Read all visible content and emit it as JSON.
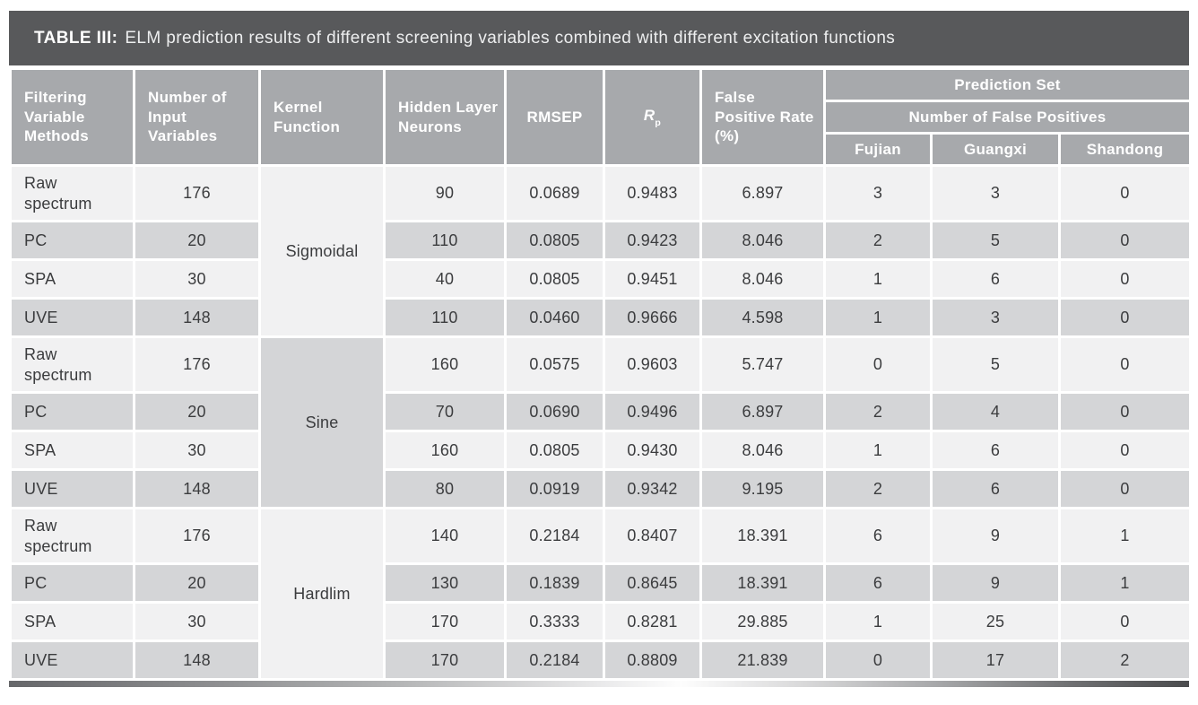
{
  "title": {
    "label": "TABLE III:",
    "text": "ELM prediction results of different screening variables combined with different excitation functions"
  },
  "header": {
    "col_filtering": "Filtering Variable Methods",
    "col_num_input": "Number of Input Variables",
    "col_kernel": "Kernel Function",
    "col_hidden": "Hidden Layer Neurons",
    "col_rmsep": "RMSEP",
    "col_rp_base": "R",
    "col_rp_sub": "p",
    "col_fpr": "False Positive Rate (%)",
    "group_prediction": "Prediction Set",
    "group_false_positives": "Number of False Positives",
    "region_fujian": "Fujian",
    "region_guangxi": "Guangxi",
    "region_shandong": "Shandong"
  },
  "rows": [
    {
      "method": "Raw spectrum",
      "inputs": "176",
      "kernel": "Sigmoidal",
      "neurons": "90",
      "rmsep": "0.0689",
      "rp": "0.9483",
      "fpr": "6.897",
      "fujian": "3",
      "guangxi": "3",
      "shandong": "0"
    },
    {
      "method": "PC",
      "inputs": "20",
      "neurons": "110",
      "rmsep": "0.0805",
      "rp": "0.9423",
      "fpr": "8.046",
      "fujian": "2",
      "guangxi": "5",
      "shandong": "0"
    },
    {
      "method": "SPA",
      "inputs": "30",
      "neurons": "40",
      "rmsep": "0.0805",
      "rp": "0.9451",
      "fpr": "8.046",
      "fujian": "1",
      "guangxi": "6",
      "shandong": "0"
    },
    {
      "method": "UVE",
      "inputs": "148",
      "neurons": "110",
      "rmsep": "0.0460",
      "rp": "0.9666",
      "fpr": "4.598",
      "fujian": "1",
      "guangxi": "3",
      "shandong": "0"
    },
    {
      "method": "Raw spectrum",
      "inputs": "176",
      "kernel": "Sine",
      "neurons": "160",
      "rmsep": "0.0575",
      "rp": "0.9603",
      "fpr": "5.747",
      "fujian": "0",
      "guangxi": "5",
      "shandong": "0"
    },
    {
      "method": "PC",
      "inputs": "20",
      "neurons": "70",
      "rmsep": "0.0690",
      "rp": "0.9496",
      "fpr": "6.897",
      "fujian": "2",
      "guangxi": "4",
      "shandong": "0"
    },
    {
      "method": "SPA",
      "inputs": "30",
      "neurons": "160",
      "rmsep": "0.0805",
      "rp": "0.9430",
      "fpr": "8.046",
      "fujian": "1",
      "guangxi": "6",
      "shandong": "0"
    },
    {
      "method": "UVE",
      "inputs": "148",
      "neurons": "80",
      "rmsep": "0.0919",
      "rp": "0.9342",
      "fpr": "9.195",
      "fujian": "2",
      "guangxi": "6",
      "shandong": "0"
    },
    {
      "method": "Raw spectrum",
      "inputs": "176",
      "kernel": "Hardlim",
      "neurons": "140",
      "rmsep": "0.2184",
      "rp": "0.8407",
      "fpr": "18.391",
      "fujian": "6",
      "guangxi": "9",
      "shandong": "1"
    },
    {
      "method": "PC",
      "inputs": "20",
      "neurons": "130",
      "rmsep": "0.1839",
      "rp": "0.8645",
      "fpr": "18.391",
      "fujian": "6",
      "guangxi": "9",
      "shandong": "1"
    },
    {
      "method": "SPA",
      "inputs": "30",
      "neurons": "170",
      "rmsep": "0.3333",
      "rp": "0.8281",
      "fpr": "29.885",
      "fujian": "1",
      "guangxi": "25",
      "shandong": "0"
    },
    {
      "method": "UVE",
      "inputs": "148",
      "neurons": "170",
      "rmsep": "0.2184",
      "rp": "0.8809",
      "fpr": "21.839",
      "fujian": "0",
      "guangxi": "17",
      "shandong": "2"
    }
  ],
  "colors": {
    "title_bar_bg": "#58595B",
    "header_bg": "#A7A9AC",
    "row_light": "#F1F1F2",
    "row_dark": "#D4D5D7",
    "body_text": "#3B3C3E",
    "header_text": "#FFFFFF"
  }
}
